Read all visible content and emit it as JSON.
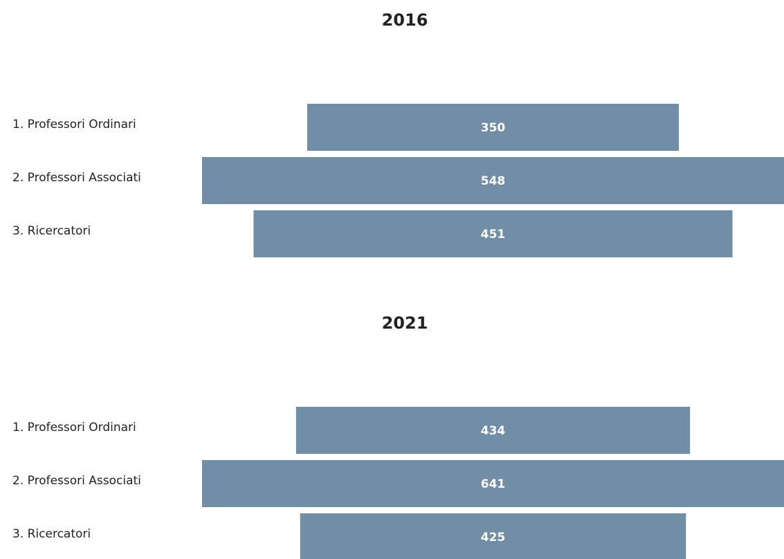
{
  "chart_data": [
    {
      "type": "funnel",
      "title": "2016",
      "categories": [
        "1. Professori Ordinari",
        "2. Professori Associati",
        "3. Ricercatori"
      ],
      "values": [
        350,
        548,
        451
      ],
      "color": "#728ea6"
    },
    {
      "type": "funnel",
      "title": "2021",
      "categories": [
        "1. Professori Ordinari",
        "2. Professori Associati",
        "3. Ricercatori"
      ],
      "values": [
        434,
        641,
        425
      ],
      "color": "#728ea6"
    }
  ]
}
